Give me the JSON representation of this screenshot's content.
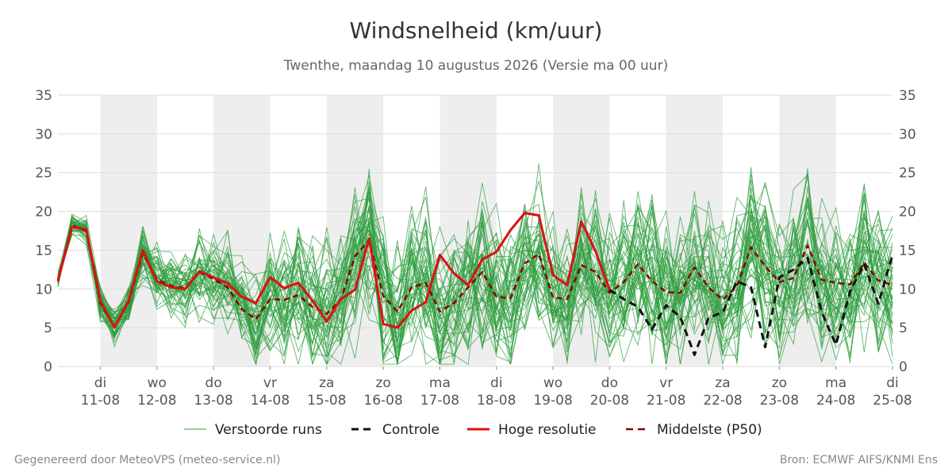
{
  "header": {
    "title": "Windsnelheid (km/uur)",
    "subtitle": "Twenthe, maandag 10 augustus 2026 (Versie ma 00 uur)"
  },
  "footer": {
    "left": "Gegenereerd door MeteoVPS (meteo-service.nl)",
    "right": "Bron: ECMWF AIFS/KNMI Ens"
  },
  "colors": {
    "ensemble": "#2e9e3e",
    "control": "#111111",
    "hires": "#dd1111",
    "median": "#8b0000",
    "band": "#eeeeee",
    "grid": "#dddddd"
  },
  "chart_data": {
    "type": "line",
    "ylim": [
      0,
      35
    ],
    "yticks": [
      0,
      5,
      10,
      15,
      20,
      25,
      30,
      35
    ],
    "y_axes": "left and right",
    "x_start": "2026-08-10T06:00",
    "x_end": "2026-08-25T00:00",
    "x_ticks": [
      {
        "day": "di",
        "date": "11-08"
      },
      {
        "day": "wo",
        "date": "12-08"
      },
      {
        "day": "do",
        "date": "13-08"
      },
      {
        "day": "vr",
        "date": "14-08"
      },
      {
        "day": "za",
        "date": "15-08"
      },
      {
        "day": "zo",
        "date": "16-08"
      },
      {
        "day": "ma",
        "date": "17-08"
      },
      {
        "day": "di",
        "date": "18-08"
      },
      {
        "day": "wo",
        "date": "19-08"
      },
      {
        "day": "do",
        "date": "20-08"
      },
      {
        "day": "vr",
        "date": "21-08"
      },
      {
        "day": "za",
        "date": "22-08"
      },
      {
        "day": "zo",
        "date": "23-08"
      },
      {
        "day": "ma",
        "date": "24-08"
      },
      {
        "day": "di",
        "date": "25-08"
      }
    ],
    "shaded_days": [
      "11-08",
      "13-08",
      "15-08",
      "17-08",
      "19-08",
      "21-08",
      "23-08"
    ],
    "grid": true,
    "legend_position": "bottom",
    "legend": [
      {
        "key": "ensemble",
        "label": "Verstoorde runs",
        "style": "thin-solid"
      },
      {
        "key": "control",
        "label": "Controle",
        "style": "dashed"
      },
      {
        "key": "hires",
        "label": "Hoge resolutie",
        "style": "thick-solid"
      },
      {
        "key": "median",
        "label": "Middelste (P50)",
        "style": "dashed"
      }
    ],
    "series": [
      {
        "key": "hires",
        "x": [
          "2026-08-10T06:00",
          "2026-08-10T12:00",
          "2026-08-10T18:00",
          "2026-08-11T00:00",
          "2026-08-11T06:00",
          "2026-08-11T12:00",
          "2026-08-11T18:00",
          "2026-08-12T00:00",
          "2026-08-12T06:00",
          "2026-08-12T12:00",
          "2026-08-12T18:00",
          "2026-08-13T00:00",
          "2026-08-13T06:00",
          "2026-08-13T12:00",
          "2026-08-13T18:00",
          "2026-08-14T00:00",
          "2026-08-14T06:00",
          "2026-08-14T12:00",
          "2026-08-14T18:00",
          "2026-08-15T00:00",
          "2026-08-15T06:00",
          "2026-08-15T12:00",
          "2026-08-15T18:00",
          "2026-08-16T00:00",
          "2026-08-16T06:00",
          "2026-08-16T12:00",
          "2026-08-16T18:00",
          "2026-08-17T00:00",
          "2026-08-17T06:00",
          "2026-08-17T12:00",
          "2026-08-17T18:00",
          "2026-08-18T00:00",
          "2026-08-18T06:00",
          "2026-08-18T12:00",
          "2026-08-18T18:00",
          "2026-08-19T00:00",
          "2026-08-19T06:00",
          "2026-08-19T12:00",
          "2026-08-19T18:00",
          "2026-08-20T00:00"
        ],
        "values": [
          11,
          18,
          17.7,
          8.5,
          5,
          8.5,
          15,
          11,
          10.2,
          10,
          12.3,
          11.5,
          10.7,
          9,
          8.2,
          11.5,
          10.1,
          10.8,
          8.5,
          5.8,
          8.7,
          9.9,
          16.5,
          5.5,
          5,
          7.2,
          8.3,
          14.4,
          12,
          10.5,
          13.8,
          14.8,
          17.6,
          19.8,
          19.5,
          11.8,
          10.5,
          18.7,
          14.9,
          9.9
        ]
      },
      {
        "key": "control",
        "x": [
          "2026-08-20T00:00",
          "2026-08-20T06:00",
          "2026-08-20T12:00",
          "2026-08-20T18:00",
          "2026-08-21T00:00",
          "2026-08-21T06:00",
          "2026-08-21T12:00",
          "2026-08-21T18:00",
          "2026-08-22T00:00",
          "2026-08-22T06:00",
          "2026-08-22T12:00",
          "2026-08-22T18:00",
          "2026-08-23T00:00",
          "2026-08-23T06:00",
          "2026-08-23T12:00",
          "2026-08-23T18:00",
          "2026-08-24T00:00",
          "2026-08-24T06:00",
          "2026-08-24T12:00",
          "2026-08-24T18:00",
          "2026-08-25T00:00"
        ],
        "values": [
          9.9,
          8.7,
          7.7,
          4.8,
          7.9,
          6.4,
          1.5,
          6.3,
          7,
          11,
          10.2,
          2.5,
          11.5,
          12.5,
          14,
          7,
          2.8,
          9.7,
          13.2,
          8.1,
          14.4
        ]
      },
      {
        "key": "median",
        "x": [
          "2026-08-10T06:00",
          "2026-08-10T12:00",
          "2026-08-10T18:00",
          "2026-08-11T00:00",
          "2026-08-11T06:00",
          "2026-08-11T12:00",
          "2026-08-11T18:00",
          "2026-08-12T00:00",
          "2026-08-12T06:00",
          "2026-08-12T12:00",
          "2026-08-12T18:00",
          "2026-08-13T00:00",
          "2026-08-13T06:00",
          "2026-08-13T12:00",
          "2026-08-13T18:00",
          "2026-08-14T00:00",
          "2026-08-14T06:00",
          "2026-08-14T12:00",
          "2026-08-14T18:00",
          "2026-08-15T00:00",
          "2026-08-15T06:00",
          "2026-08-15T12:00",
          "2026-08-15T18:00",
          "2026-08-16T00:00",
          "2026-08-16T06:00",
          "2026-08-16T12:00",
          "2026-08-16T18:00",
          "2026-08-17T00:00",
          "2026-08-17T06:00",
          "2026-08-17T12:00",
          "2026-08-17T18:00",
          "2026-08-18T00:00",
          "2026-08-18T06:00",
          "2026-08-18T12:00",
          "2026-08-18T18:00",
          "2026-08-19T00:00",
          "2026-08-19T06:00",
          "2026-08-19T12:00",
          "2026-08-19T18:00",
          "2026-08-20T00:00",
          "2026-08-20T06:00",
          "2026-08-20T12:00",
          "2026-08-20T18:00",
          "2026-08-21T00:00",
          "2026-08-21T06:00",
          "2026-08-21T12:00",
          "2026-08-21T18:00",
          "2026-08-22T00:00",
          "2026-08-22T06:00",
          "2026-08-22T12:00",
          "2026-08-22T18:00",
          "2026-08-23T00:00",
          "2026-08-23T06:00",
          "2026-08-23T12:00",
          "2026-08-23T18:00",
          "2026-08-24T00:00",
          "2026-08-24T06:00",
          "2026-08-24T12:00",
          "2026-08-24T18:00",
          "2026-08-25T00:00"
        ],
        "values": [
          11.2,
          18.2,
          17.5,
          8.2,
          5.1,
          8.3,
          14.6,
          11.2,
          10.4,
          10.1,
          12.2,
          11.3,
          10.2,
          7.4,
          6.1,
          8.7,
          8.6,
          9.2,
          7.7,
          6.8,
          8.6,
          14.2,
          16.3,
          9.1,
          7.1,
          10.2,
          10.8,
          7.1,
          8.2,
          10.2,
          12.2,
          9,
          8.8,
          13.3,
          14.5,
          8.9,
          8.7,
          13.1,
          12.2,
          9.5,
          10.9,
          13.2,
          11,
          9.6,
          9.5,
          12.8,
          10.2,
          8.6,
          10.4,
          15.4,
          12.9,
          10.9,
          11.4,
          15.6,
          11.2,
          10.8,
          10.6,
          13.4,
          11.1,
          10.5
        ]
      }
    ]
  }
}
